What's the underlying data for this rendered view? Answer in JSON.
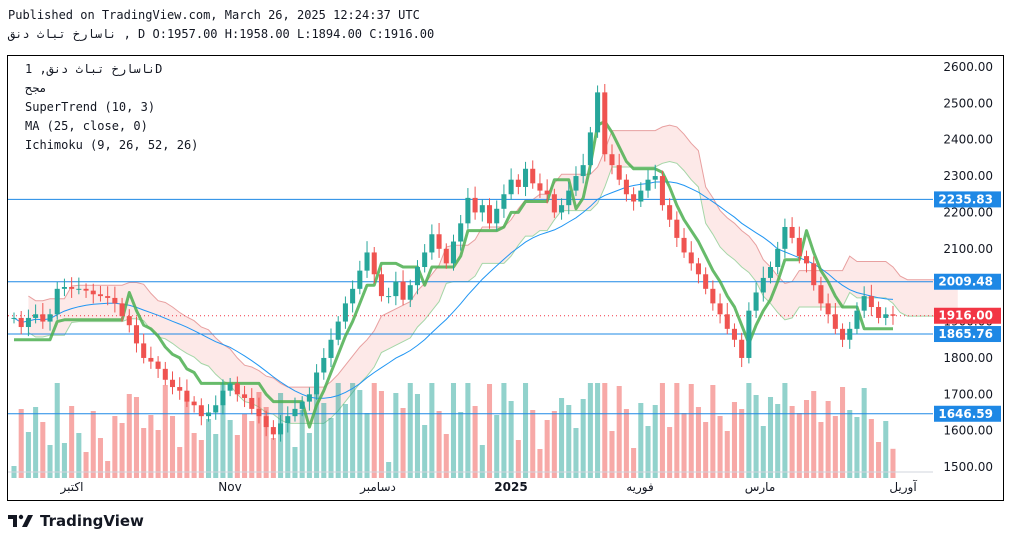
{
  "header": {
    "published": "Published on TradingView.com, March 26, 2025 12:24:37 UTC",
    "ohlc_line": "ناسارخ تباث دنق , D O:1957.00 H:1958.00 L:1894.00 C:1916.00"
  },
  "legend": {
    "symbol": "ناسارخ تباث دنق, 1D",
    "exchange": "مجح",
    "supertrend": "SuperTrend (10, 3)",
    "ma": "MA (25, close, 0)",
    "ichimoku": "Ichimoku (9, 26, 52, 26)"
  },
  "brand": {
    "name": "TradingView",
    "logo_icon": "tradingview-logo-icon"
  },
  "colors": {
    "up": "#26a69a",
    "down": "#ef5350",
    "supertrend_up": "#4caf50",
    "supertrend_down": "#b05050",
    "ma": "#2196f3",
    "hline": "#1e88e5",
    "current": "#f23645"
  },
  "chart_data": {
    "type": "candlestick",
    "timeframe": "1D",
    "y_axis": {
      "ticks": [
        2600,
        2500,
        2400,
        2300,
        2200,
        2100,
        2000,
        1900,
        1800,
        1700,
        1600,
        1500
      ],
      "ylim": [
        1470,
        2630
      ]
    },
    "x_axis": {
      "labels": [
        "اکتبر",
        "Nov",
        "دسامبر",
        "2025",
        "فوریه",
        "مارس",
        "آوریل"
      ]
    },
    "price_levels": [
      {
        "label": "2235.83",
        "value": 2235.83,
        "kind": "hline"
      },
      {
        "label": "2009.48",
        "value": 2009.48,
        "kind": "hline"
      },
      {
        "label": "1916.00",
        "value": 1916.0,
        "kind": "current"
      },
      {
        "label": "1865.76",
        "value": 1865.76,
        "kind": "hline"
      },
      {
        "label": "1646.59",
        "value": 1646.59,
        "kind": "hline"
      }
    ],
    "last_ohlc": {
      "open": 1957.0,
      "high": 1958.0,
      "low": 1894.0,
      "close": 1916.0
    },
    "closes": [
      1910,
      1885,
      1910,
      1920,
      1900,
      1920,
      1990,
      1995,
      1990,
      1990,
      1985,
      1975,
      1970,
      1965,
      1950,
      1915,
      1890,
      1840,
      1800,
      1790,
      1770,
      1740,
      1720,
      1710,
      1680,
      1670,
      1640,
      1650,
      1670,
      1710,
      1730,
      1700,
      1690,
      1660,
      1640,
      1610,
      1590,
      1620,
      1640,
      1660,
      1680,
      1700,
      1760,
      1800,
      1850,
      1900,
      1950,
      1990,
      2040,
      2090,
      2030,
      1970,
      1970,
      2010,
      1960,
      2000,
      2050,
      2090,
      2140,
      2100,
      2060,
      2120,
      2170,
      2240,
      2200,
      2220,
      2170,
      2210,
      2250,
      2290,
      2270,
      2320,
      2280,
      2260,
      2250,
      2200,
      2220,
      2260,
      2300,
      2330,
      2420,
      2530,
      2360,
      2330,
      2290,
      2250,
      2230,
      2260,
      2290,
      2300,
      2220,
      2180,
      2130,
      2090,
      2060,
      2030,
      1990,
      1950,
      1920,
      1880,
      1850,
      1800,
      1930,
      1980,
      2020,
      2050,
      2100,
      2160,
      2130,
      2080,
      2060,
      2000,
      1950,
      1920,
      1880,
      1850,
      1880,
      1930,
      1970,
      1940,
      1910,
      1920,
      1916
    ],
    "volume_histogram": {
      "series": "volume",
      "note": "bars colored by candle direction"
    },
    "series": [
      {
        "name": "SuperTrend (10, 3)"
      },
      {
        "name": "MA (25, close, 0)"
      },
      {
        "name": "Ichimoku (9, 26, 52, 26)"
      }
    ]
  }
}
